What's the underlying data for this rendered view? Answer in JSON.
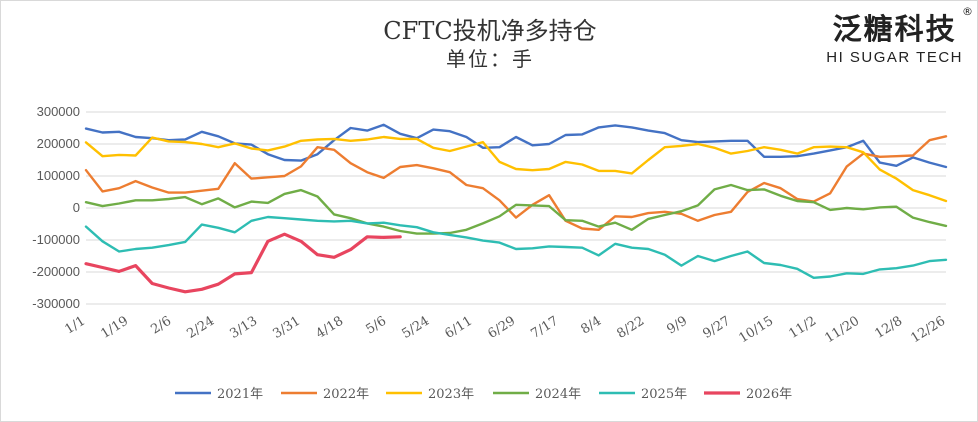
{
  "title": "CFTC投机净多持仓",
  "subtitle": "单位：手",
  "logo": {
    "main": "泛糖科技",
    "sub": "HI SUGAR TECH",
    "reg": "®"
  },
  "chart_data": {
    "type": "line",
    "ylim": [
      -300000,
      300000
    ],
    "yticks": [
      300000,
      200000,
      100000,
      0,
      -100000,
      -200000,
      -300000
    ],
    "ytick_labels": [
      "300000",
      "200000",
      "100000",
      "0",
      "-100000",
      "-200000",
      "-300000"
    ],
    "xtick_labels": [
      "1/1",
      "1/19",
      "2/6",
      "2/24",
      "3/13",
      "3/31",
      "4/18",
      "5/6",
      "5/24",
      "6/11",
      "6/29",
      "7/17",
      "8/4",
      "8/22",
      "9/9",
      "9/27",
      "10/15",
      "11/2",
      "11/20",
      "12/8",
      "12/26"
    ],
    "legend_position": "bottom",
    "grid": true,
    "series": [
      {
        "name": "2021年",
        "color": "#4472C4",
        "values": [
          248000,
          236000,
          238000,
          222000,
          218000,
          212000,
          214000,
          238000,
          224000,
          202000,
          198000,
          168000,
          150000,
          148000,
          168000,
          212000,
          250000,
          242000,
          260000,
          232000,
          218000,
          245000,
          240000,
          222000,
          188000,
          190000,
          222000,
          196000,
          200000,
          228000,
          230000,
          252000,
          258000,
          252000,
          242000,
          234000,
          212000,
          206000,
          208000,
          210000,
          210000,
          160000,
          160000,
          162000,
          170000,
          180000,
          190000,
          210000,
          142000,
          132000,
          158000,
          142000,
          128000
        ]
      },
      {
        "name": "2022年",
        "color": "#ED7D31",
        "values": [
          118000,
          52000,
          62000,
          84000,
          64000,
          48000,
          48000,
          54000,
          60000,
          140000,
          92000,
          96000,
          100000,
          130000,
          190000,
          182000,
          140000,
          112000,
          94000,
          128000,
          134000,
          124000,
          112000,
          72000,
          62000,
          24000,
          -30000,
          10000,
          40000,
          -40000,
          -64000,
          -68000,
          -26000,
          -28000,
          -16000,
          -12000,
          -18000,
          -40000,
          -22000,
          -12000,
          50000,
          78000,
          62000,
          28000,
          20000,
          46000,
          130000,
          170000,
          160000,
          162000,
          164000,
          212000,
          224000
        ]
      },
      {
        "name": "2023年",
        "color": "#FFC000",
        "values": [
          205000,
          162000,
          166000,
          164000,
          220000,
          208000,
          206000,
          200000,
          190000,
          202000,
          186000,
          180000,
          192000,
          210000,
          214000,
          216000,
          210000,
          214000,
          222000,
          216000,
          216000,
          188000,
          178000,
          192000,
          206000,
          144000,
          122000,
          118000,
          122000,
          144000,
          136000,
          116000,
          116000,
          108000,
          150000,
          190000,
          194000,
          200000,
          188000,
          170000,
          178000,
          190000,
          182000,
          170000,
          190000,
          192000,
          190000,
          174000,
          120000,
          92000,
          56000,
          40000,
          22000
        ]
      },
      {
        "name": "2024年",
        "color": "#70AD47",
        "values": [
          18000,
          6000,
          14000,
          24000,
          24000,
          28000,
          34000,
          12000,
          30000,
          2000,
          20000,
          16000,
          44000,
          56000,
          36000,
          -20000,
          -32000,
          -48000,
          -58000,
          -72000,
          -80000,
          -80000,
          -78000,
          -68000,
          -48000,
          -26000,
          10000,
          8000,
          6000,
          -38000,
          -40000,
          -58000,
          -46000,
          -68000,
          -34000,
          -22000,
          -10000,
          8000,
          58000,
          72000,
          56000,
          58000,
          38000,
          22000,
          18000,
          -6000,
          0,
          -4000,
          2000,
          4000,
          -30000,
          -44000,
          -56000
        ]
      },
      {
        "name": "2025年",
        "color": "#2EBDB3",
        "values": [
          -58000,
          -104000,
          -136000,
          -128000,
          -124000,
          -116000,
          -106000,
          -52000,
          -62000,
          -76000,
          -40000,
          -28000,
          -32000,
          -36000,
          -40000,
          -42000,
          -40000,
          -48000,
          -46000,
          -54000,
          -60000,
          -76000,
          -84000,
          -92000,
          -102000,
          -108000,
          -128000,
          -126000,
          -120000,
          -122000,
          -124000,
          -148000,
          -112000,
          -124000,
          -128000,
          -146000,
          -180000,
          -150000,
          -166000,
          -150000,
          -136000,
          -172000,
          -178000,
          -190000,
          -218000,
          -214000,
          -204000,
          -206000,
          -192000,
          -188000,
          -180000,
          -166000,
          -162000
        ]
      },
      {
        "name": "2026年",
        "color": "#E8455F",
        "values": [
          -174000,
          -186000,
          -198000,
          -180000,
          -236000,
          -250000,
          -262000,
          -254000,
          -238000,
          -206000,
          -202000,
          -104000,
          -82000,
          -104000,
          -146000,
          -154000,
          -130000,
          -90000,
          -92000,
          -90000
        ]
      }
    ]
  }
}
